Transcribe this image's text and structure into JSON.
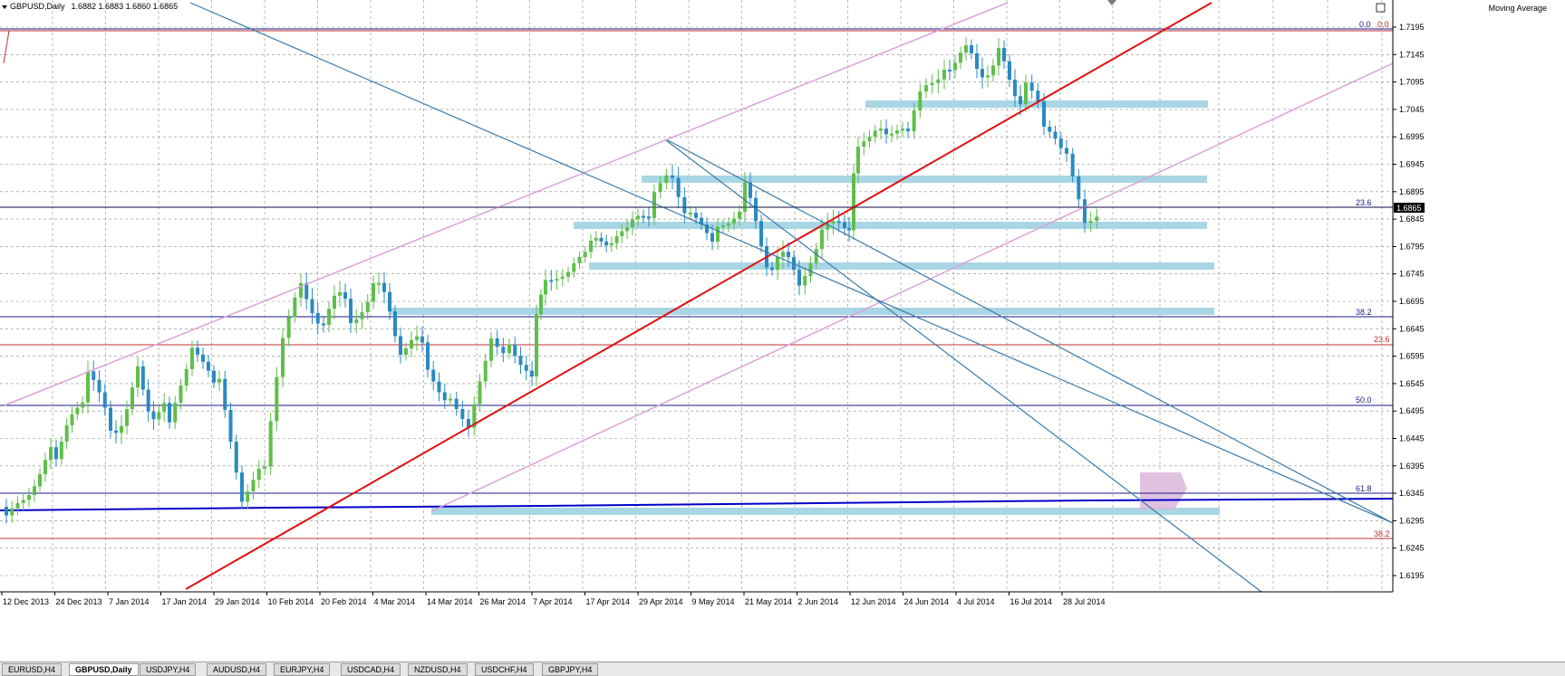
{
  "window": {
    "symbol_label": "GBPUSD,Daily",
    "ohlc": "1.6882 1.6883 1.6860 1.6865",
    "indicator_label": "Moving Average",
    "current_price": "1.6865"
  },
  "fib_labels": {
    "blue_top": "0.0",
    "red_top": "0.0",
    "blue_236": "23.6",
    "blue_382": "38.2",
    "red_236": "23.6",
    "blue_500": "50.0",
    "blue_618": "61.8",
    "red_382": "38.2"
  },
  "price_axis": [
    "1.7195",
    "1.7145",
    "1.7095",
    "1.7045",
    "1.6995",
    "1.6945",
    "1.6895",
    "1.6845",
    "1.6795",
    "1.6745",
    "1.6695",
    "1.6645",
    "1.6595",
    "1.6545",
    "1.6495",
    "1.6445",
    "1.6395",
    "1.6345",
    "1.6295",
    "1.6245",
    "1.6195"
  ],
  "date_axis": [
    "12 Dec 2013",
    "24 Dec 2013",
    "7 Jan 2014",
    "17 Jan 2014",
    "29 Jan 2014",
    "10 Feb 2014",
    "20 Feb 2014",
    "4 Mar 2014",
    "14 Mar 2014",
    "26 Mar 2014",
    "7 Apr 2014",
    "17 Apr 2014",
    "29 Apr 2014",
    "9 May 2014",
    "21 May 2014",
    "2 Jun 2014",
    "12 Jun 2014",
    "24 Jun 2014",
    "4 Jul 2014",
    "16 Jul 2014",
    "28 Jul 2014"
  ],
  "tabs": [
    "EURUSD,H4",
    "GBPUSD,Daily",
    "USDJPY,H4",
    "AUDUSD,H4",
    "EURJPY,H4",
    "USDCAD,H4",
    "NZDUSD,H4",
    "USDCHF,H4",
    "GBPJPY,H4"
  ],
  "colors": {
    "bull": "#5fbf4a",
    "bear": "#2a8ac2",
    "grid": "#8a8a8a",
    "zone": "#a9d6e5",
    "trend_red": "#e01010",
    "channel_pink": "#d9a3d9",
    "channel_blue": "#3a7aa8",
    "fib_blue": "#1a1a8a",
    "fib_red": "#c03030",
    "ma": "#0000c8"
  }
}
